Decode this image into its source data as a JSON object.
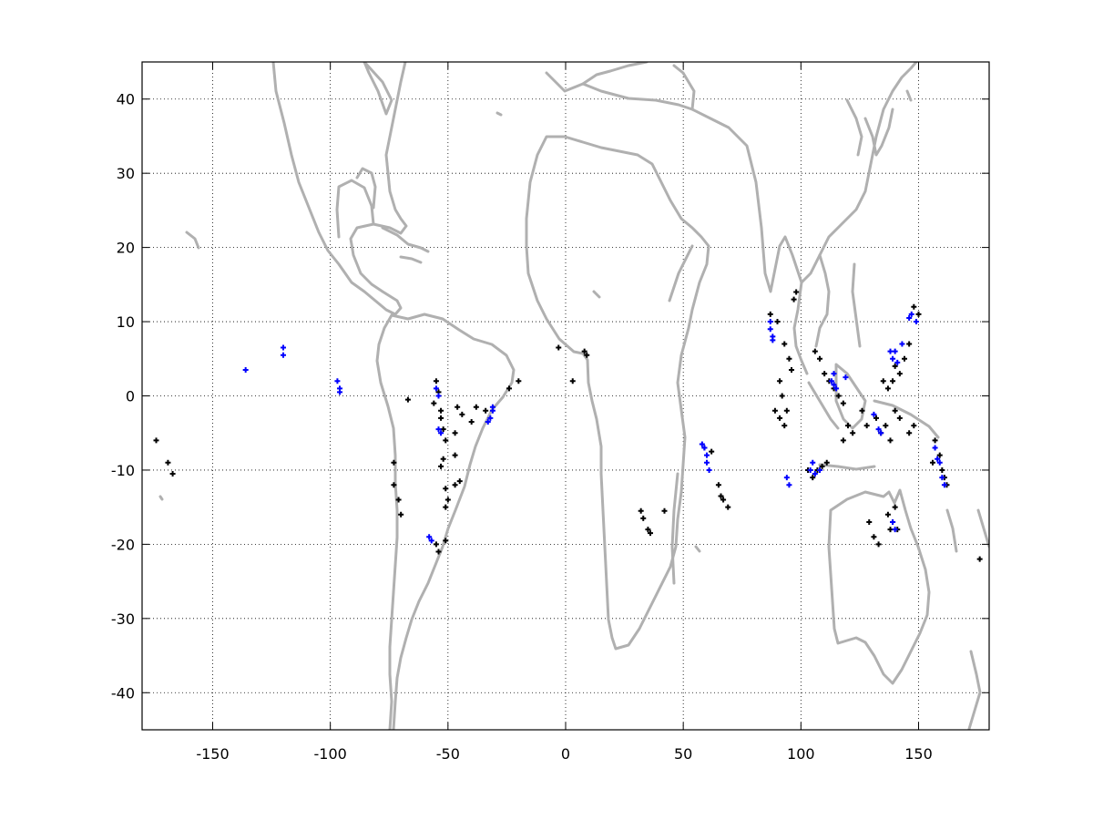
{
  "chart_data": {
    "type": "scatter",
    "title": "",
    "xlabel": "",
    "ylabel": "",
    "xlim": [
      -180,
      180
    ],
    "ylim": [
      -45,
      45
    ],
    "x_ticks": [
      -150,
      -100,
      -50,
      0,
      50,
      100,
      150
    ],
    "y_ticks": [
      -40,
      -30,
      -20,
      -10,
      0,
      10,
      20,
      30,
      40
    ],
    "grid": true,
    "grid_style": "dotted",
    "background_layer": "coastlines",
    "colors": {
      "coast": "#b0b0b0",
      "series_black": "#000000",
      "series_blue": "#0000ff",
      "axes": "#000000"
    },
    "series": [
      {
        "color": "black",
        "points": [
          [
            -174,
            -6
          ],
          [
            -169,
            -9
          ],
          [
            -167,
            -10.5
          ],
          [
            -67,
            -0.5
          ],
          [
            -56,
            -1
          ],
          [
            -53,
            -2
          ],
          [
            -46,
            -1.5
          ],
          [
            -44,
            -2.5
          ],
          [
            -40,
            -3.5
          ],
          [
            -38,
            -1.5
          ],
          [
            -34,
            -2
          ],
          [
            -24,
            1
          ],
          [
            -20,
            2
          ],
          [
            -55,
            2
          ],
          [
            -54,
            0.5
          ],
          [
            -53,
            -3
          ],
          [
            -52,
            -4.5
          ],
          [
            -51,
            -6
          ],
          [
            -52,
            -8.5
          ],
          [
            -53,
            -9.5
          ],
          [
            -51,
            -12.5
          ],
          [
            -50,
            -14
          ],
          [
            -51,
            -15
          ],
          [
            -47,
            -5
          ],
          [
            -47,
            -8
          ],
          [
            -47,
            -12
          ],
          [
            -45,
            -11.5
          ],
          [
            -73,
            -9
          ],
          [
            -73,
            -12
          ],
          [
            -71,
            -14
          ],
          [
            -70,
            -16
          ],
          [
            -55,
            -20
          ],
          [
            -54,
            -21
          ],
          [
            -51,
            -19.5
          ],
          [
            -3,
            6.5
          ],
          [
            8,
            6
          ],
          [
            9,
            5.5
          ],
          [
            3,
            2
          ],
          [
            32,
            -15.5
          ],
          [
            33,
            -16.5
          ],
          [
            35,
            -18
          ],
          [
            36,
            -18.5
          ],
          [
            42,
            -15.5
          ],
          [
            59,
            -7
          ],
          [
            62,
            -7.5
          ],
          [
            65,
            -12
          ],
          [
            66,
            -13.5
          ],
          [
            67,
            -14
          ],
          [
            69,
            -15
          ],
          [
            87,
            11
          ],
          [
            90,
            10
          ],
          [
            93,
            7
          ],
          [
            95,
            5
          ],
          [
            96,
            3.5
          ],
          [
            97,
            13
          ],
          [
            98,
            14
          ],
          [
            91,
            2
          ],
          [
            92,
            0
          ],
          [
            89,
            -2
          ],
          [
            91,
            -3
          ],
          [
            93,
            -4
          ],
          [
            94,
            -2
          ],
          [
            106,
            6
          ],
          [
            108,
            5
          ],
          [
            110,
            3
          ],
          [
            112,
            2
          ],
          [
            114,
            1
          ],
          [
            116,
            0
          ],
          [
            118,
            -1
          ],
          [
            120,
            -4
          ],
          [
            118,
            -6
          ],
          [
            122,
            -5
          ],
          [
            103,
            -10
          ],
          [
            105,
            -11
          ],
          [
            107,
            -10
          ],
          [
            109,
            -9.5
          ],
          [
            111,
            -9
          ],
          [
            135,
            2
          ],
          [
            137,
            1
          ],
          [
            139,
            2
          ],
          [
            140,
            4
          ],
          [
            142,
            3
          ],
          [
            144,
            5
          ],
          [
            146,
            7
          ],
          [
            126,
            -2
          ],
          [
            128,
            -4
          ],
          [
            132,
            -3
          ],
          [
            134,
            -5
          ],
          [
            136,
            -4
          ],
          [
            138,
            -6
          ],
          [
            140,
            -2
          ],
          [
            142,
            -3
          ],
          [
            146,
            -5
          ],
          [
            148,
            -4
          ],
          [
            137,
            -16
          ],
          [
            138,
            -18
          ],
          [
            139,
            -17
          ],
          [
            140,
            -15
          ],
          [
            141,
            -18
          ],
          [
            129,
            -17
          ],
          [
            131,
            -19
          ],
          [
            133,
            -20
          ],
          [
            157,
            -6
          ],
          [
            159,
            -8
          ],
          [
            160,
            -10
          ],
          [
            161,
            -11
          ],
          [
            162,
            -12
          ],
          [
            156,
            -9
          ],
          [
            150,
            11
          ],
          [
            148,
            12
          ],
          [
            176,
            -22
          ]
        ]
      },
      {
        "color": "blue",
        "points": [
          [
            -136,
            3.5
          ],
          [
            -120,
            6.5
          ],
          [
            -120,
            5.5
          ],
          [
            -97,
            2
          ],
          [
            -96,
            1
          ],
          [
            -96,
            0.5
          ],
          [
            -55,
            1
          ],
          [
            -54,
            0
          ],
          [
            -54,
            -4.5
          ],
          [
            -53,
            -5
          ],
          [
            -31,
            -2
          ],
          [
            -32,
            -3
          ],
          [
            -33,
            -3.5
          ],
          [
            -31,
            -1.5
          ],
          [
            -58,
            -19
          ],
          [
            -57,
            -19.5
          ],
          [
            59,
            -7
          ],
          [
            60,
            -9
          ],
          [
            61,
            -10
          ],
          [
            60,
            -8
          ],
          [
            58,
            -6.5
          ],
          [
            87,
            9
          ],
          [
            88,
            8
          ],
          [
            87,
            10
          ],
          [
            88,
            7.5
          ],
          [
            94,
            -11
          ],
          [
            95,
            -12
          ],
          [
            104,
            -10
          ],
          [
            106,
            -10.5
          ],
          [
            108,
            -10
          ],
          [
            105,
            -9
          ],
          [
            113,
            2
          ],
          [
            114,
            1.5
          ],
          [
            115,
            1
          ],
          [
            114,
            3
          ],
          [
            119,
            2.5
          ],
          [
            138,
            6
          ],
          [
            139,
            5
          ],
          [
            140,
            6
          ],
          [
            141,
            4.5
          ],
          [
            143,
            7
          ],
          [
            146,
            10.5
          ],
          [
            147,
            11
          ],
          [
            149,
            10
          ],
          [
            131,
            -2.5
          ],
          [
            133,
            -4.5
          ],
          [
            134,
            -5
          ],
          [
            139,
            -17
          ],
          [
            140,
            -18
          ],
          [
            157,
            -7
          ],
          [
            158,
            -8.5
          ],
          [
            159,
            -9
          ],
          [
            160,
            -11
          ],
          [
            161,
            -12
          ]
        ]
      }
    ]
  }
}
